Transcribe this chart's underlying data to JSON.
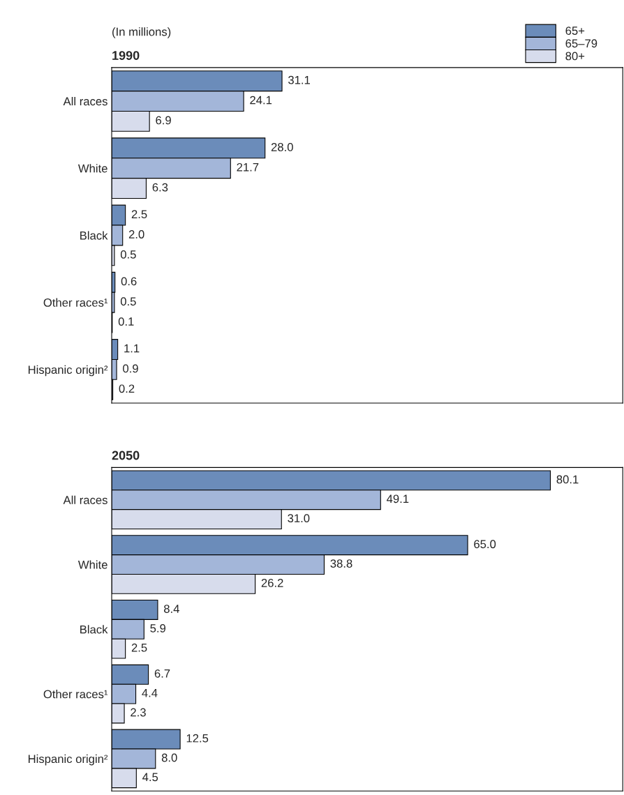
{
  "chart_data": [
    {
      "type": "bar",
      "orientation": "horizontal",
      "title": "1990",
      "annotations": [
        "(In millions)"
      ],
      "categories": [
        "All races",
        "White",
        "Black",
        "Other races¹",
        "Hispanic origin²"
      ],
      "legend": "top right",
      "tick_labels": "y",
      "series": [
        {
          "name": "65+",
          "color": "#6b8cba",
          "values": [
            31.1,
            28.0,
            2.5,
            0.6,
            1.1
          ],
          "value_labels": [
            "31.1",
            "28.0",
            "2.5",
            "0.6",
            "1.1"
          ]
        },
        {
          "name": "65–79",
          "color": "#a3b6d9",
          "values": [
            24.1,
            21.7,
            2.0,
            0.5,
            0.9
          ],
          "value_labels": [
            "24.1",
            "21.7",
            "2.0",
            "0.5",
            "0.9"
          ]
        },
        {
          "name": "80+",
          "color": "#d7dcec",
          "values": [
            6.9,
            6.3,
            0.5,
            0.1,
            0.2
          ],
          "value_labels": [
            "6.9",
            "6.3",
            "0.5",
            "0.1",
            "0.2"
          ]
        }
      ]
    },
    {
      "type": "bar",
      "orientation": "horizontal",
      "title": "2050",
      "categories": [
        "All races",
        "White",
        "Black",
        "Other races¹",
        "Hispanic origin²"
      ],
      "tick_labels": "y",
      "series": [
        {
          "color": "#6b8cba",
          "values": [
            80.1,
            65.0,
            8.4,
            6.7,
            12.5
          ],
          "value_labels": [
            "80.1",
            "65.0",
            "8.4",
            "6.7",
            "12.5"
          ]
        },
        {
          "color": "#a3b6d9",
          "values": [
            49.1,
            38.8,
            5.9,
            4.4,
            8.0
          ],
          "value_labels": [
            "49.1",
            "38.8",
            "5.9",
            "4.4",
            "8.0"
          ]
        },
        {
          "color": "#d7dcec",
          "values": [
            31.0,
            26.2,
            2.5,
            2.3,
            4.5
          ],
          "value_labels": [
            "31.0",
            "26.2",
            "2.5",
            "2.3",
            "4.5"
          ]
        }
      ]
    }
  ]
}
